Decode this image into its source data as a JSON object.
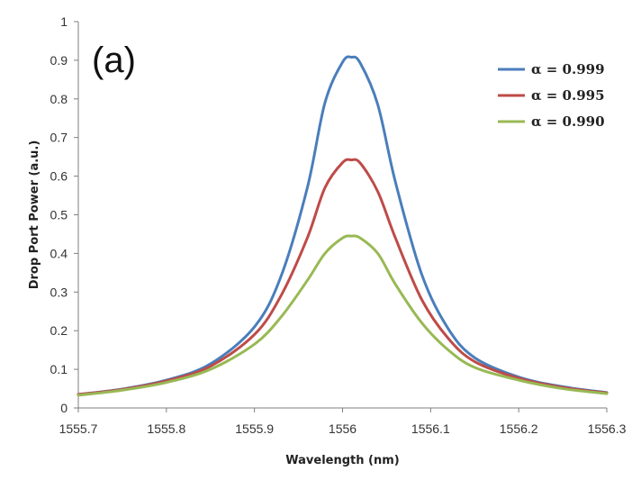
{
  "chart_data": {
    "type": "line",
    "panel_label": "(a)",
    "xlabel": "Wavelength (nm)",
    "ylabel": "Drop Port Power (a.u.)",
    "xlim": [
      1555.7,
      1556.3
    ],
    "ylim": [
      0,
      1
    ],
    "x_ticks": [
      "1555.7",
      "1555.8",
      "1555.9",
      "1556",
      "1556.1",
      "1556.2",
      "1556.3"
    ],
    "y_ticks": [
      "0",
      "0.1",
      "0.2",
      "0.3",
      "0.4",
      "0.5",
      "0.6",
      "0.7",
      "0.8",
      "0.9",
      "1"
    ],
    "grid": false,
    "legend_position": "top-right",
    "x": [
      1555.7,
      1555.75,
      1555.8,
      1555.85,
      1555.9,
      1555.93,
      1555.96,
      1555.98,
      1556.0,
      1556.01,
      1556.02,
      1556.04,
      1556.06,
      1556.09,
      1556.12,
      1556.15,
      1556.2,
      1556.25,
      1556.3
    ],
    "series": [
      {
        "name": "α = 0.999",
        "color": "#4a7ebb",
        "values": [
          0.035,
          0.049,
          0.072,
          0.114,
          0.21,
          0.34,
          0.57,
          0.79,
          0.895,
          0.908,
          0.893,
          0.785,
          0.585,
          0.345,
          0.205,
          0.13,
          0.08,
          0.055,
          0.04
        ]
      },
      {
        "name": "α = 0.995",
        "color": "#be4b48",
        "values": [
          0.035,
          0.048,
          0.07,
          0.108,
          0.19,
          0.29,
          0.44,
          0.57,
          0.635,
          0.642,
          0.634,
          0.56,
          0.44,
          0.28,
          0.18,
          0.12,
          0.077,
          0.053,
          0.039
        ]
      },
      {
        "name": "α = 0.990",
        "color": "#98b954",
        "values": [
          0.033,
          0.046,
          0.066,
          0.1,
          0.165,
          0.235,
          0.33,
          0.4,
          0.44,
          0.445,
          0.44,
          0.4,
          0.32,
          0.22,
          0.15,
          0.105,
          0.072,
          0.05,
          0.037
        ]
      }
    ]
  }
}
